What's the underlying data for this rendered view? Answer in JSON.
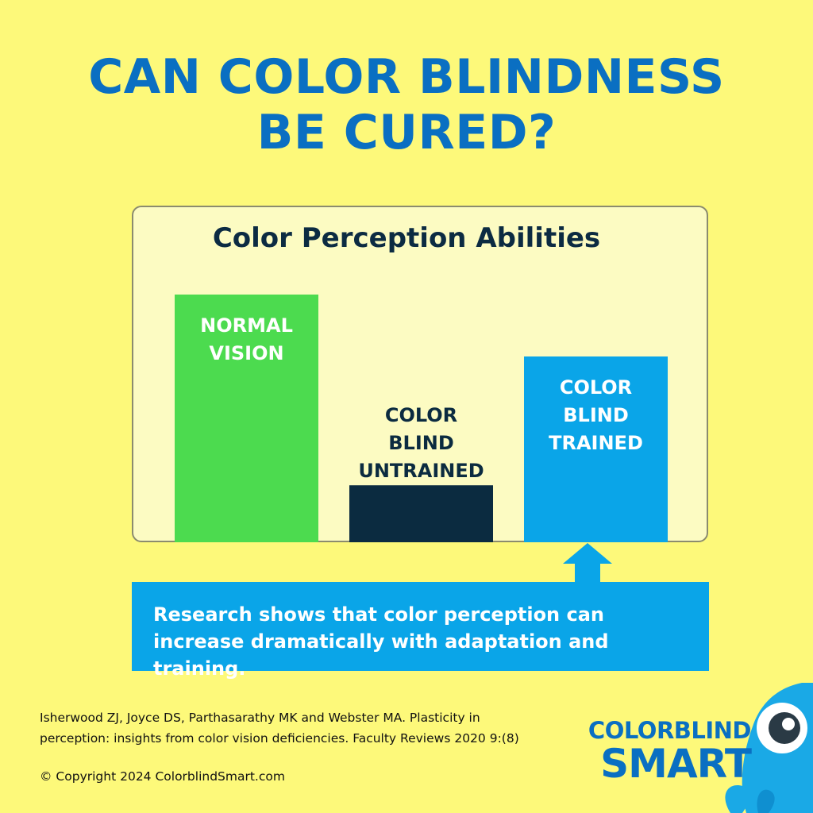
{
  "headline": {
    "line1": "CAN COLOR BLINDNESS",
    "line2": "BE CURED?"
  },
  "chart_data": {
    "type": "bar",
    "title": "Color Perception Abilities",
    "xlabel": "",
    "ylabel": "",
    "ylim": [
      0,
      100
    ],
    "grid": false,
    "legend": "none",
    "categories": [
      [
        "NORMAL",
        "VISION"
      ],
      [
        "COLOR",
        "BLIND",
        "UNTRAINED"
      ],
      [
        "COLOR",
        "BLIND",
        "TRAINED"
      ]
    ],
    "values": [
      100,
      23,
      75
    ],
    "colors": [
      "#4cdb4f",
      "#0b2b40",
      "#0aa5e8"
    ],
    "label_colors": [
      "#ffffff",
      "#0b2b40",
      "#ffffff"
    ]
  },
  "callout": {
    "text": "Research shows that color perception can increase dramatically with adaptation and training."
  },
  "citation": {
    "text": "Isherwood ZJ, Joyce DS, Parthasarathy MK and Webster MA. Plasticity in perception: insights from color vision deficiencies. Faculty Reviews 2020 9:(8)"
  },
  "copyright": {
    "text": "© Copyright 2024 ColorblindSmart.com"
  },
  "brand": {
    "line1": "COLORBLIND",
    "line2": "SMART",
    "mascot_icon": "octopus-mascot-icon"
  },
  "colors": {
    "background": "#fdf97a",
    "headline": "#0a6fc2",
    "callout": "#0aa5e8"
  }
}
